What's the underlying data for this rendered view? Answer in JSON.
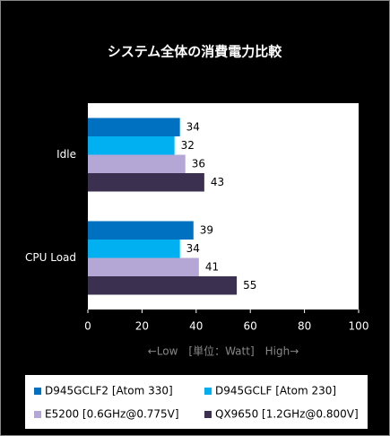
{
  "chart_data": {
    "type": "hbar",
    "title": "システム全体の消費電力比較",
    "categories": [
      "Idle",
      "CPU Load"
    ],
    "series": [
      {
        "name": "D945GCLF2 [Atom 330]",
        "color": "#0070c0",
        "values": [
          34,
          39
        ]
      },
      {
        "name": "D945GCLF [Atom 230]",
        "color": "#00b0f0",
        "values": [
          32,
          34
        ]
      },
      {
        "name": "E5200 [0.6GHz@0.775V]",
        "color": "#b4a7d6",
        "values": [
          36,
          41
        ]
      },
      {
        "name": "QX9650 [1.2GHz@0.800V]",
        "color": "#3b3050",
        "values": [
          43,
          55
        ]
      }
    ],
    "xlabel": "←Low　[単位：Watt]　High→",
    "xlim": [
      0,
      100
    ],
    "xticks": [
      0,
      20,
      40,
      60,
      80,
      100
    ],
    "grid": false
  }
}
